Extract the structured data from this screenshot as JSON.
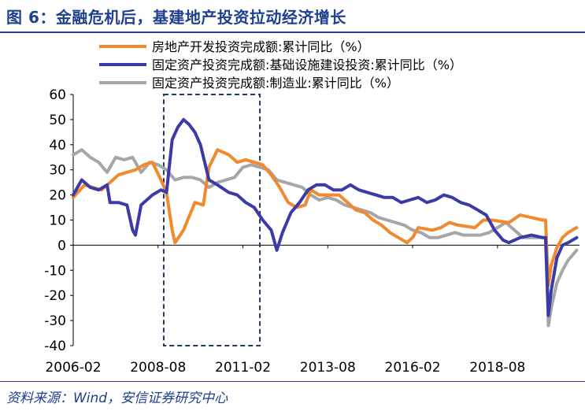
{
  "title": "图 6：金融危机后，基建地产投资拉动经济增长",
  "source": "资料来源：Wind，安信证券研究中心",
  "chart_data": {
    "type": "line",
    "title": "图 6：金融危机后，基建地产投资拉动经济增长",
    "xlabel": "",
    "ylabel": "",
    "ylim": [
      -40,
      60
    ],
    "yticks": [
      60,
      50,
      40,
      30,
      20,
      10,
      0,
      -10,
      -20,
      -30,
      -40
    ],
    "xlim": [
      "2006-02",
      "2021-01"
    ],
    "xticks": [
      "2006-02",
      "2008-08",
      "2011-02",
      "2013-08",
      "2016-02",
      "2018-08"
    ],
    "legend_position": "top",
    "grid": false,
    "highlight_box": {
      "x_range": [
        "2008-10",
        "2011-08"
      ],
      "y_range": [
        -40,
        60
      ],
      "style": "dashed"
    },
    "series": [
      {
        "name": "房地产开发投资完成额:累计同比（%）",
        "color": "#f08a2c",
        "points": [
          [
            "2006-02",
            19
          ],
          [
            "2006-06",
            24
          ],
          [
            "2006-12",
            22
          ],
          [
            "2007-06",
            28
          ],
          [
            "2007-12",
            30
          ],
          [
            "2008-03",
            32
          ],
          [
            "2008-06",
            33
          ],
          [
            "2008-09",
            26
          ],
          [
            "2008-11",
            21
          ],
          [
            "2009-01",
            6
          ],
          [
            "2009-02",
            1
          ],
          [
            "2009-05",
            6
          ],
          [
            "2009-09",
            17
          ],
          [
            "2009-12",
            16
          ],
          [
            "2010-02",
            31
          ],
          [
            "2010-05",
            38
          ],
          [
            "2010-09",
            36
          ],
          [
            "2010-12",
            33
          ],
          [
            "2011-03",
            34
          ],
          [
            "2011-06",
            33
          ],
          [
            "2011-09",
            32
          ],
          [
            "2011-12",
            28
          ],
          [
            "2012-03",
            23
          ],
          [
            "2012-06",
            17
          ],
          [
            "2012-09",
            15
          ],
          [
            "2012-12",
            16
          ],
          [
            "2013-02",
            22
          ],
          [
            "2013-05",
            20
          ],
          [
            "2013-08",
            20
          ],
          [
            "2013-12",
            20
          ],
          [
            "2014-03",
            17
          ],
          [
            "2014-06",
            14
          ],
          [
            "2014-09",
            13
          ],
          [
            "2014-12",
            10
          ],
          [
            "2015-03",
            8
          ],
          [
            "2015-06",
            5
          ],
          [
            "2015-09",
            3
          ],
          [
            "2015-12",
            1
          ],
          [
            "2016-02",
            3
          ],
          [
            "2016-04",
            7
          ],
          [
            "2016-09",
            6
          ],
          [
            "2016-12",
            7
          ],
          [
            "2017-03",
            9
          ],
          [
            "2017-06",
            8
          ],
          [
            "2017-12",
            7
          ],
          [
            "2018-03",
            10
          ],
          [
            "2018-06",
            10
          ],
          [
            "2018-12",
            9
          ],
          [
            "2019-04",
            12
          ],
          [
            "2019-08",
            11
          ],
          [
            "2019-12",
            10
          ],
          [
            "2020-01",
            10
          ],
          [
            "2020-02",
            -16
          ],
          [
            "2020-03",
            -8
          ],
          [
            "2020-05",
            -1
          ],
          [
            "2020-07",
            3
          ],
          [
            "2020-09",
            5
          ],
          [
            "2020-12",
            7
          ]
        ]
      },
      {
        "name": "固定资产投资完成额:基础设施建设投资:累计同比（%）",
        "color": "#3a3aa8",
        "points": [
          [
            "2006-02",
            20
          ],
          [
            "2006-05",
            26
          ],
          [
            "2006-08",
            23
          ],
          [
            "2006-11",
            22
          ],
          [
            "2007-02",
            24
          ],
          [
            "2007-03",
            17
          ],
          [
            "2007-06",
            17
          ],
          [
            "2007-09",
            16
          ],
          [
            "2007-11",
            6
          ],
          [
            "2007-12",
            4
          ],
          [
            "2008-02",
            16
          ],
          [
            "2008-06",
            20
          ],
          [
            "2008-09",
            22
          ],
          [
            "2008-11",
            21
          ],
          [
            "2009-01",
            42
          ],
          [
            "2009-03",
            47
          ],
          [
            "2009-05",
            50
          ],
          [
            "2009-07",
            48
          ],
          [
            "2009-09",
            45
          ],
          [
            "2009-11",
            40
          ],
          [
            "2010-02",
            26
          ],
          [
            "2010-05",
            24
          ],
          [
            "2010-09",
            21
          ],
          [
            "2010-12",
            20
          ],
          [
            "2011-03",
            17
          ],
          [
            "2011-06",
            15
          ],
          [
            "2011-09",
            10
          ],
          [
            "2011-12",
            6
          ],
          [
            "2012-02",
            -2
          ],
          [
            "2012-04",
            5
          ],
          [
            "2012-07",
            13
          ],
          [
            "2012-10",
            17
          ],
          [
            "2013-01",
            22
          ],
          [
            "2013-04",
            24
          ],
          [
            "2013-07",
            24
          ],
          [
            "2013-10",
            22
          ],
          [
            "2014-01",
            22
          ],
          [
            "2014-04",
            24
          ],
          [
            "2014-07",
            22
          ],
          [
            "2014-10",
            21
          ],
          [
            "2015-01",
            20
          ],
          [
            "2015-04",
            19
          ],
          [
            "2015-07",
            19
          ],
          [
            "2015-10",
            17
          ],
          [
            "2016-01",
            18
          ],
          [
            "2016-04",
            19
          ],
          [
            "2016-07",
            17
          ],
          [
            "2016-10",
            18
          ],
          [
            "2017-01",
            20
          ],
          [
            "2017-04",
            19
          ],
          [
            "2017-07",
            17
          ],
          [
            "2017-10",
            16
          ],
          [
            "2018-01",
            14
          ],
          [
            "2018-04",
            12
          ],
          [
            "2018-07",
            6
          ],
          [
            "2018-10",
            2
          ],
          [
            "2018-12",
            1
          ],
          [
            "2019-04",
            3
          ],
          [
            "2019-08",
            4
          ],
          [
            "2019-12",
            3
          ],
          [
            "2020-01",
            3
          ],
          [
            "2020-02",
            -28
          ],
          [
            "2020-03",
            -18
          ],
          [
            "2020-05",
            -5
          ],
          [
            "2020-07",
            0
          ],
          [
            "2020-09",
            1
          ],
          [
            "2020-12",
            3
          ]
        ]
      },
      {
        "name": "固定资产投资完成额:制造业:累计同比（%）",
        "color": "#a6a6a6",
        "points": [
          [
            "2006-02",
            36
          ],
          [
            "2006-05",
            38
          ],
          [
            "2006-08",
            35
          ],
          [
            "2006-11",
            33
          ],
          [
            "2007-02",
            29
          ],
          [
            "2007-05",
            35
          ],
          [
            "2007-08",
            34
          ],
          [
            "2007-11",
            35
          ],
          [
            "2008-02",
            29
          ],
          [
            "2008-05",
            33
          ],
          [
            "2008-08",
            32
          ],
          [
            "2008-11",
            30
          ],
          [
            "2009-02",
            26
          ],
          [
            "2009-05",
            27
          ],
          [
            "2009-08",
            27
          ],
          [
            "2009-11",
            26
          ],
          [
            "2010-02",
            23
          ],
          [
            "2010-05",
            25
          ],
          [
            "2010-08",
            26
          ],
          [
            "2010-11",
            27
          ],
          [
            "2011-02",
            31
          ],
          [
            "2011-05",
            32
          ],
          [
            "2011-08",
            31
          ],
          [
            "2011-11",
            30
          ],
          [
            "2012-02",
            26
          ],
          [
            "2012-05",
            25
          ],
          [
            "2012-08",
            24
          ],
          [
            "2012-11",
            23
          ],
          [
            "2013-02",
            20
          ],
          [
            "2013-05",
            18
          ],
          [
            "2013-08",
            19
          ],
          [
            "2013-11",
            18
          ],
          [
            "2014-02",
            16
          ],
          [
            "2014-05",
            15
          ],
          [
            "2014-08",
            14
          ],
          [
            "2014-11",
            13
          ],
          [
            "2015-02",
            11
          ],
          [
            "2015-05",
            10
          ],
          [
            "2015-08",
            9
          ],
          [
            "2015-11",
            8
          ],
          [
            "2016-02",
            6
          ],
          [
            "2016-05",
            5
          ],
          [
            "2016-08",
            3
          ],
          [
            "2016-11",
            3
          ],
          [
            "2017-02",
            4
          ],
          [
            "2017-05",
            5
          ],
          [
            "2017-08",
            4
          ],
          [
            "2017-11",
            4
          ],
          [
            "2018-02",
            4
          ],
          [
            "2018-05",
            5
          ],
          [
            "2018-08",
            7
          ],
          [
            "2018-11",
            9
          ],
          [
            "2019-02",
            6
          ],
          [
            "2019-05",
            3
          ],
          [
            "2019-08",
            3
          ],
          [
            "2019-12",
            3
          ],
          [
            "2020-01",
            3
          ],
          [
            "2020-02",
            -32
          ],
          [
            "2020-03",
            -25
          ],
          [
            "2020-05",
            -15
          ],
          [
            "2020-07",
            -10
          ],
          [
            "2020-09",
            -6
          ],
          [
            "2020-12",
            -2
          ]
        ]
      }
    ]
  }
}
